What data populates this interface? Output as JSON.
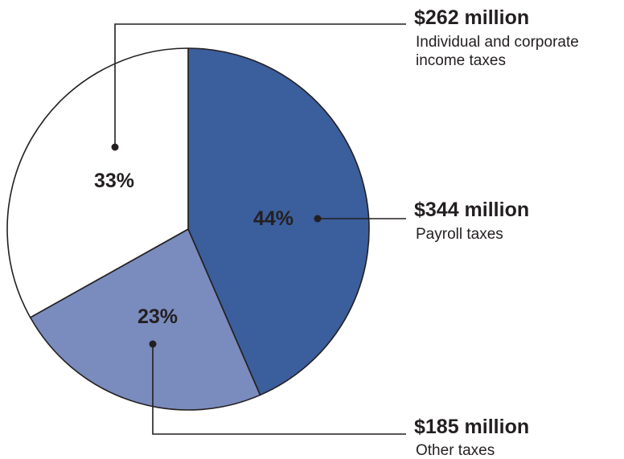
{
  "chart_data": {
    "type": "pie",
    "start_angle_deg": 0,
    "direction": "clockwise",
    "slices": [
      {
        "key": "payroll",
        "value": 344,
        "percent_label": "44%",
        "amount_label": "$344 million",
        "description_lines": [
          "Payroll taxes"
        ],
        "color": "#3b5e9c"
      },
      {
        "key": "other",
        "value": 185,
        "percent_label": "23%",
        "amount_label": "$185 million",
        "description_lines": [
          "Other taxes"
        ],
        "color": "#7a8bbd"
      },
      {
        "key": "income",
        "value": 262,
        "percent_label": "33%",
        "amount_label": "$262 million",
        "description_lines": [
          "Individual and corporate",
          "income taxes"
        ],
        "color": "#ffffff"
      }
    ],
    "outline_color": "#231f20"
  }
}
